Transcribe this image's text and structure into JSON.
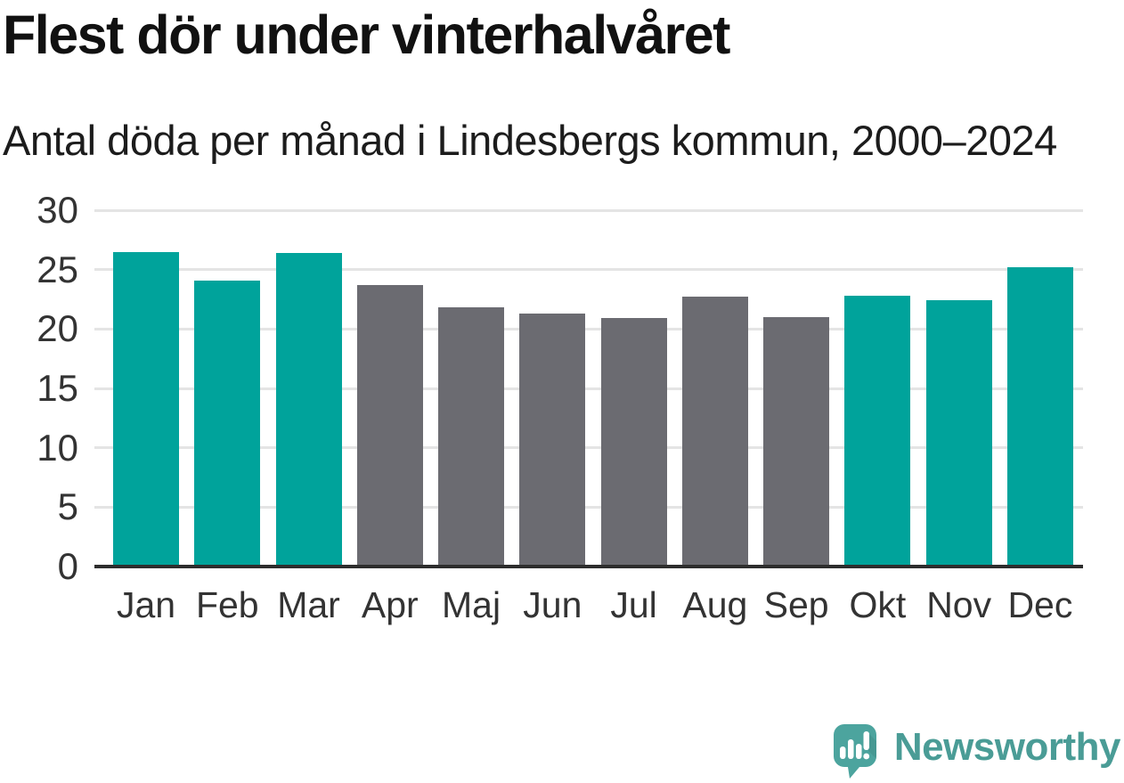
{
  "header": {
    "title": "Flest dör under vinterhalvåret",
    "subtitle": "Antal döda per månad i Lindesbergs kommun, 2000–2024"
  },
  "chart_data": {
    "type": "bar",
    "title": "Flest dör under vinterhalvåret",
    "subtitle": "Antal döda per månad i Lindesbergs kommun, 2000–2024",
    "categories": [
      "Jan",
      "Feb",
      "Mar",
      "Apr",
      "Maj",
      "Jun",
      "Jul",
      "Aug",
      "Sep",
      "Okt",
      "Nov",
      "Dec"
    ],
    "values": [
      26.5,
      24.1,
      26.4,
      23.7,
      21.8,
      21.3,
      20.9,
      22.7,
      21.0,
      22.8,
      22.4,
      25.2
    ],
    "highlight_winter_months": [
      true,
      true,
      true,
      false,
      false,
      false,
      false,
      false,
      false,
      true,
      true,
      true
    ],
    "colors": {
      "winter_bar": "#00a39b",
      "summer_bar": "#6b6b71",
      "gridline": "#e4e4e4",
      "axis_line": "#2d2d2d",
      "tick_text": "#333333"
    },
    "xlabel": "",
    "ylabel": "",
    "ylim": [
      0,
      30
    ],
    "yticks": [
      0,
      5,
      10,
      15,
      20,
      25,
      30
    ],
    "grid": true,
    "legend": "none"
  },
  "footer": {
    "brand": "Newsworthy",
    "logo": {
      "icon": "speech-bubble-bar-chart-exclamation",
      "bubble_color": "#4ca49e",
      "text_color": "#4a9c96"
    }
  }
}
